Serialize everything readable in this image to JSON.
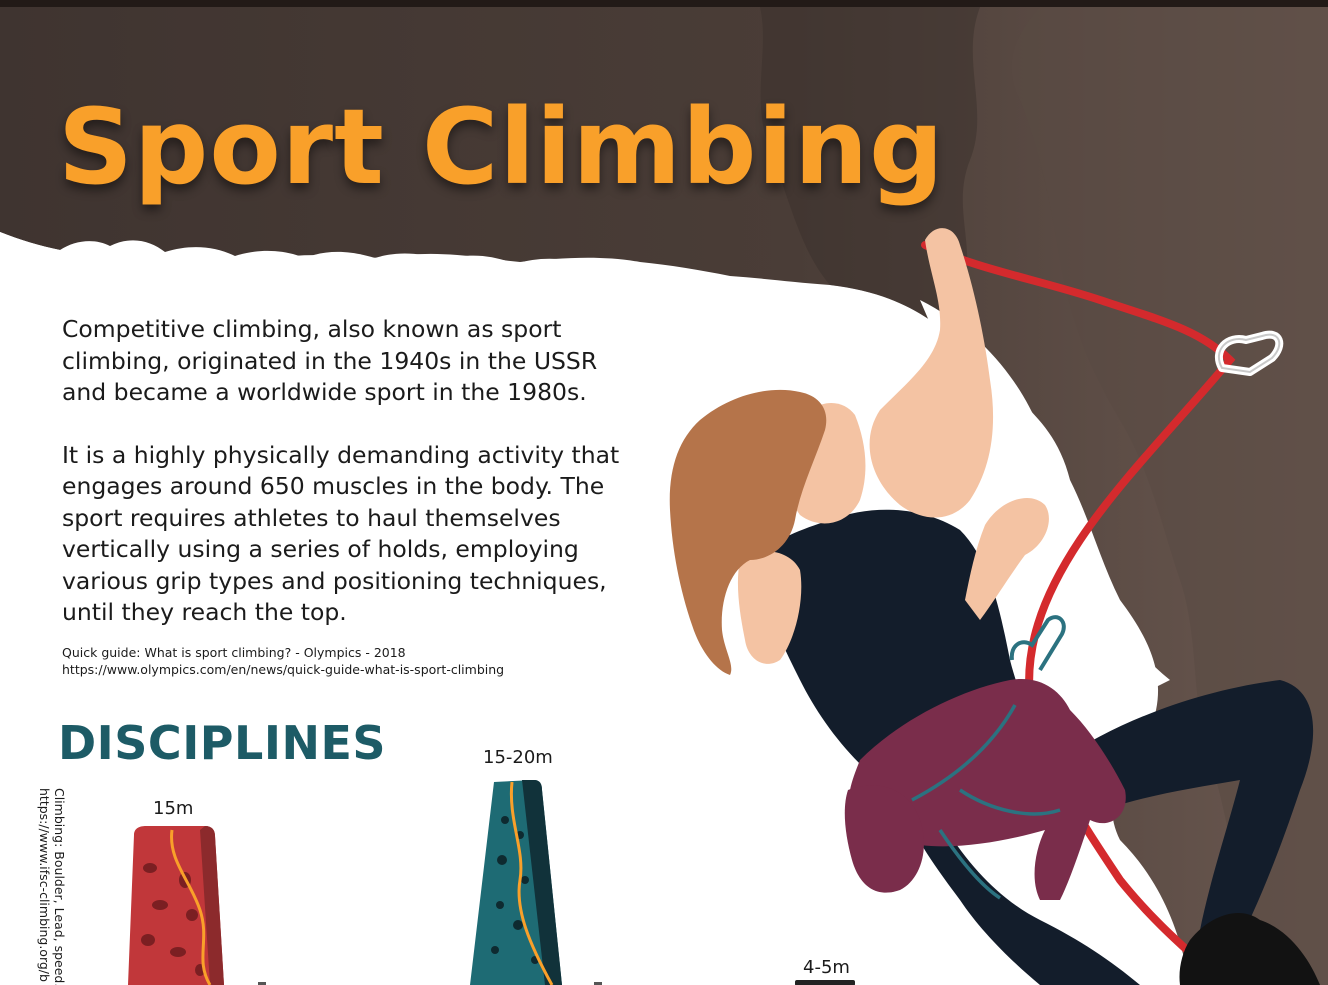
{
  "title": "Sport Climbing",
  "intro": {
    "paragraph_1": "Competitive climbing, also known as sport climbing, originated in the 1940s in the USSR and became a worldwide sport in the 1980s.",
    "paragraph_2": "It is a highly physically demanding activity that engages around 650 muscles in the body. The sport requires athletes to haul themselves vertically using a series of holds, employing various grip types and positioning techniques, until they reach the top."
  },
  "source": {
    "citation": "Quick guide: What is sport climbing? - Olympics - 2018",
    "url": "https://www.olympics.com/en/news/quick-guide-what-is-sport-climbing"
  },
  "disciplines": {
    "heading": "DISCIPLINES",
    "walls": [
      {
        "height_label": "15m",
        "color": "#c1373a"
      },
      {
        "height_label": "15-20m",
        "color": "#1e6b74"
      },
      {
        "height_label": "4-5m",
        "color": "#222222"
      }
    ]
  },
  "side_credit": {
    "line_1": "Climbing: Boulder, Lead, speed.",
    "line_2": "https://www.ifsc-climbing.org/b"
  },
  "colors": {
    "title": "#f9a02a",
    "rock": "#4a3d37",
    "heading": "#1d5b66",
    "rope": "#d42a2d"
  }
}
